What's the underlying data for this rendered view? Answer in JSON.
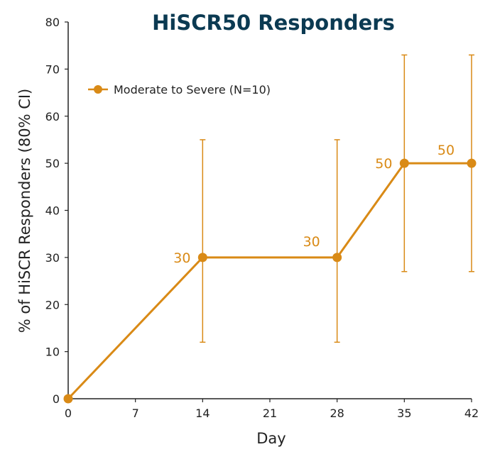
{
  "chart_data": {
    "type": "line",
    "title": "HiSCR50 Responders",
    "xlabel": "Day",
    "ylabel": "% of HiSCR Responders (80% CI)",
    "x_ticks": [
      0,
      7,
      14,
      21,
      28,
      35,
      42
    ],
    "y_ticks": [
      0,
      10,
      20,
      30,
      40,
      50,
      60,
      70,
      80
    ],
    "xlim": [
      0,
      42
    ],
    "ylim": [
      0,
      80
    ],
    "grid": false,
    "legend_position": "top-left",
    "colors": {
      "series": "#d98a16",
      "title": "#0b3a52",
      "axis": "#222222"
    },
    "series": [
      {
        "name": "Moderate to Severe (N=10)",
        "x": [
          0,
          14,
          28,
          35,
          42
        ],
        "y": [
          0,
          30,
          30,
          50,
          50
        ],
        "error_low": [
          null,
          12,
          12,
          27,
          27
        ],
        "error_high": [
          null,
          55,
          55,
          73,
          73
        ],
        "data_labels": [
          "",
          "30",
          "30",
          "50",
          "50"
        ]
      }
    ]
  }
}
